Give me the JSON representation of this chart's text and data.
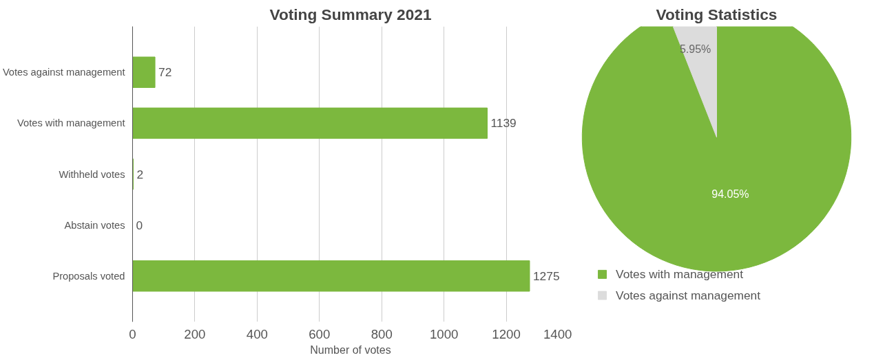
{
  "chart_data": [
    {
      "type": "bar",
      "title": "Voting Summary 2021",
      "xlabel": "Number of votes",
      "orientation": "horizontal",
      "categories": [
        "Votes against management",
        "Votes with management",
        "Withheld votes",
        "Abstain votes",
        "Proposals voted"
      ],
      "values": [
        72,
        1139,
        2,
        0,
        1275
      ],
      "color": "#7cb83e",
      "xlim": [
        0,
        1400
      ],
      "xticks": [
        0,
        200,
        400,
        600,
        800,
        1000,
        1200,
        1400
      ],
      "grid": "x",
      "data_labels": true
    },
    {
      "type": "pie",
      "title": "Voting Statistics",
      "categories": [
        "Votes with management",
        "Votes against management"
      ],
      "values": [
        94.05,
        5.95
      ],
      "colors": [
        "#7cb83e",
        "#dcdcdc"
      ],
      "value_labels": [
        "94.05%",
        "5.95%"
      ],
      "legend": "bottom"
    }
  ]
}
